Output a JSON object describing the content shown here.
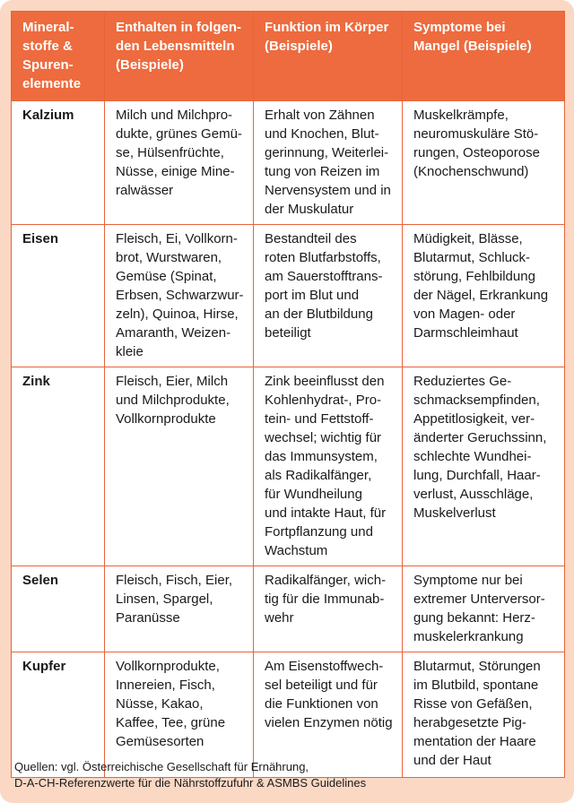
{
  "colors": {
    "header_bg": "#ed6b3e",
    "border": "#e8643a",
    "panel_bg": "#fbd8c4"
  },
  "headers": [
    "Mineral-\nstoffe &\nSpuren-\nelemente",
    "Enthalten in folgen-\nden Lebensmitteln\n(Beispiele)",
    "Funktion im Körper\n(Beispiele)",
    "Symptome bei\nMangel (Beispiele)"
  ],
  "rows": [
    {
      "name": "Kalzium",
      "foods": "Milch und Milchpro-\ndukte, grünes Gemü-\nse, Hülsenfrüchte,\nNüsse, einige Mine-\nralwässer",
      "function": "Erhalt von Zähnen\nund Knochen, Blut-\ngerinnung, Weiterlei-\ntung von Reizen im\nNervensystem und in\nder Muskulatur",
      "symptoms": "Muskelkrämpfe,\nneuromuskuläre Stö-\nrungen, Osteoporose\n(Knochenschwund)"
    },
    {
      "name": "Eisen",
      "foods": "Fleisch, Ei, Vollkorn-\nbrot, Wurstwaren,\nGemüse (Spinat,\nErbsen, Schwarzwur-\nzeln), Quinoa, Hirse,\nAmaranth, Weizen-\nkleie",
      "function": "Bestandteil des\nroten Blutfarbstoffs,\nam Sauerstofftrans-\nport im Blut und\nan der Blutbildung\nbeteiligt",
      "symptoms": "Müdigkeit, Blässe,\nBlutarmut, Schluck-\nstörung, Fehlbildung\nder Nägel, Erkrankung\nvon Magen- oder\nDarmschleimhaut"
    },
    {
      "name": "Zink",
      "foods": "Fleisch, Eier, Milch\nund Milchprodukte,\nVollkornprodukte",
      "function": "Zink beeinflusst den\nKohlenhydrat-, Pro-\ntein- und Fettstoff-\nwechsel; wichtig für\ndas Immunsystem,\nals Radikalfänger,\nfür Wundheilung\nund intakte Haut, für\nFortpflanzung und\nWachstum",
      "symptoms": "Reduziertes Ge-\nschmacksempfinden,\nAppetitlosigkeit, ver-\nänderter Geruchssinn,\nschlechte Wundhei-\nlung, Durchfall, Haar-\nverlust, Ausschläge,\nMuskelverlust"
    },
    {
      "name": "Selen",
      "foods": "Fleisch, Fisch, Eier,\nLinsen, Spargel,\nParanüsse",
      "function": "Radikalfänger, wich-\ntig für die Immunab-\nwehr",
      "symptoms": "Symptome nur bei\nextremer Unterversor-\ngung bekannt: Herz-\nmuskelerkrankung"
    },
    {
      "name": "Kupfer",
      "foods": "Vollkornprodukte,\nInnereien, Fisch,\nNüsse, Kakao,\nKaffee, Tee, grüne\nGemüsesorten",
      "function": "Am Eisenstoffwech-\nsel beteiligt und für\ndie Funktionen von\nvielen Enzymen nötig",
      "symptoms": "Blutarmut, Störungen\nim Blutbild, spontane\nRisse von Gefäßen,\nherabgesetzte Pig-\nmentation der Haare\nund der Haut"
    }
  ],
  "sources": "Quellen: vgl. Österreichische Gesellschaft für Ernährung,\nD-A-CH-Referenzwerte für die Nährstoffzufuhr & ASMBS Guidelines"
}
